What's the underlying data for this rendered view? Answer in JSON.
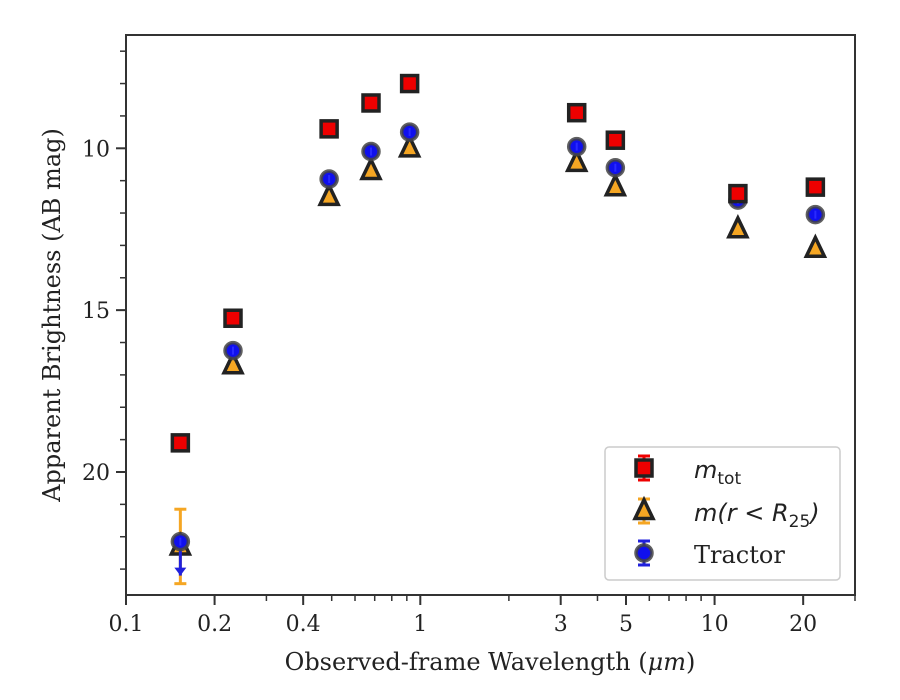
{
  "chart_data": {
    "type": "scatter",
    "xlabel_prefix": "Observed-frame Wavelength (",
    "xlabel_unit": "μm",
    "xlabel_suffix": ")",
    "ylabel": "Apparent Brightness (AB mag)",
    "x_scale": "log",
    "xlim": [
      0.1,
      30
    ],
    "ylim": [
      23.8,
      6.5
    ],
    "y_inverted": true,
    "x_ticks": [
      {
        "value": 0.1,
        "label": "0.1"
      },
      {
        "value": 0.2,
        "label": "0.2"
      },
      {
        "value": 0.4,
        "label": "0.4"
      },
      {
        "value": 1,
        "label": "1"
      },
      {
        "value": 3,
        "label": "3"
      },
      {
        "value": 5,
        "label": "5"
      },
      {
        "value": 10,
        "label": "10"
      },
      {
        "value": 20,
        "label": "20"
      }
    ],
    "y_ticks": [
      {
        "value": 10,
        "label": "10"
      },
      {
        "value": 15,
        "label": "15"
      },
      {
        "value": 20,
        "label": "20"
      }
    ],
    "grid": false,
    "legend_position": "lower-right",
    "series": [
      {
        "name_base": "m",
        "name_sub": "tot",
        "marker": "square",
        "color": "#ee0000",
        "edge": "#222222",
        "errcolor": "#ee0000",
        "x": [
          0.153,
          0.231,
          0.49,
          0.68,
          0.92,
          3.4,
          4.6,
          12.0,
          22.0
        ],
        "y": [
          19.1,
          15.25,
          9.4,
          8.6,
          8.0,
          8.9,
          9.75,
          11.4,
          11.2
        ]
      },
      {
        "name_base": "m(r < R",
        "name_sub": "25",
        "name_tail": ")",
        "marker": "triangle",
        "color": "#f5a623",
        "edge": "#222222",
        "errcolor": "#f5a623",
        "x": [
          0.153,
          0.231,
          0.49,
          0.68,
          0.92,
          3.4,
          4.6,
          12.0,
          22.0
        ],
        "y": [
          22.3,
          16.7,
          11.5,
          10.7,
          10.0,
          10.45,
          11.2,
          12.5,
          13.1
        ],
        "err_low": [
          1.15,
          0,
          0,
          0,
          0,
          0,
          0,
          0,
          0
        ],
        "err_high": [
          1.15,
          0,
          0,
          0,
          0,
          0,
          0,
          0,
          0
        ]
      },
      {
        "name": "Tractor",
        "marker": "circle",
        "color": "#1010ee",
        "edge": "#444444",
        "errcolor": "#2020dd",
        "x": [
          0.153,
          0.231,
          0.49,
          0.68,
          0.92,
          3.4,
          4.6,
          12.0,
          22.0
        ],
        "y": [
          22.15,
          16.25,
          10.95,
          10.1,
          9.5,
          9.95,
          10.6,
          11.6,
          12.05
        ],
        "upper_limit": [
          true,
          false,
          false,
          false,
          false,
          false,
          false,
          false,
          false
        ]
      }
    ]
  }
}
